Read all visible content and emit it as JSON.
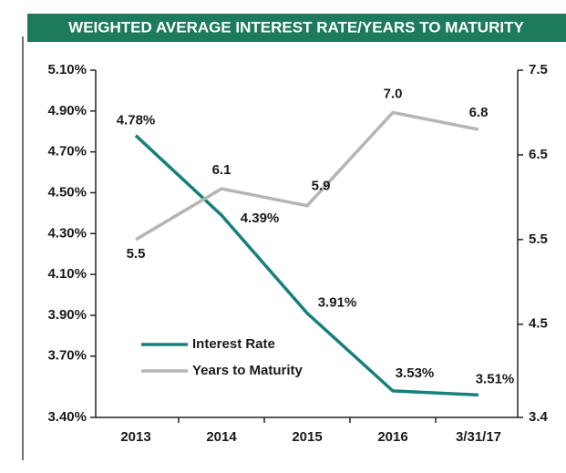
{
  "chart_data": {
    "type": "line",
    "title": "WEIGHTED AVERAGE INTEREST RATE/YEARS TO MATURITY",
    "categories": [
      "2013",
      "2014",
      "2015",
      "2016",
      "3/31/17"
    ],
    "series": [
      {
        "name": "Interest Rate",
        "color": "#17807a",
        "values": [
          4.78,
          4.39,
          3.91,
          3.53,
          3.51
        ],
        "value_labels": [
          "4.78%",
          "4.39%",
          "3.91%",
          "3.53%",
          "3.51%"
        ]
      },
      {
        "name": "Years to Maturity",
        "color": "#b5b5b5",
        "axis": "y2",
        "values": [
          5.5,
          6.1,
          5.9,
          7.0,
          6.8
        ],
        "value_labels": [
          "5.5",
          "6.1",
          "5.9",
          "7.0",
          "6.8"
        ]
      }
    ],
    "ylim": [
      3.4,
      5.1
    ],
    "yticks": [
      {
        "value": 3.4,
        "label": "3.40%"
      },
      {
        "value": 3.7,
        "label": "3.70%"
      },
      {
        "value": 3.9,
        "label": "3.90%"
      },
      {
        "value": 4.1,
        "label": "4.10%"
      },
      {
        "value": 4.3,
        "label": "4.30%"
      },
      {
        "value": 4.5,
        "label": "4.50%"
      },
      {
        "value": 4.7,
        "label": "4.70%"
      },
      {
        "value": 4.9,
        "label": "4.90%"
      },
      {
        "value": 5.1,
        "label": "5.10%"
      }
    ],
    "y2lim": [
      3.4,
      7.5
    ],
    "y2ticks": [
      3.4,
      4.5,
      5.5,
      6.5,
      7.5
    ],
    "grid": false
  }
}
